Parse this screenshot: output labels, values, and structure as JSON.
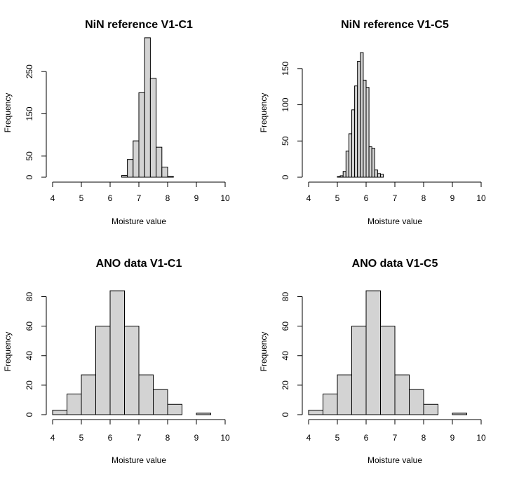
{
  "chart_data": [
    {
      "type": "bar",
      "title": "NiN reference V1-C1",
      "xlabel": "Moisture value",
      "ylabel": "Frequency",
      "xlim": [
        4,
        10
      ],
      "ylim": [
        0,
        300
      ],
      "xticks": [
        4,
        5,
        6,
        7,
        8,
        9,
        10
      ],
      "yticks": [
        0,
        50,
        150,
        250
      ],
      "bin_width": 0.2,
      "bins": [
        6.4,
        6.6,
        6.8,
        7.0,
        7.2,
        7.4,
        7.6,
        7.8,
        8.0
      ],
      "values": [
        4,
        42,
        86,
        200,
        330,
        234,
        71,
        24,
        2
      ]
    },
    {
      "type": "bar",
      "title": "NiN reference V1-C5",
      "xlabel": "Moisture value",
      "ylabel": "Frequency",
      "xlim": [
        4,
        10
      ],
      "ylim": [
        0,
        175
      ],
      "xticks": [
        4,
        5,
        6,
        7,
        8,
        9,
        10
      ],
      "yticks": [
        0,
        50,
        100,
        150
      ],
      "bin_width": 0.1,
      "bins": [
        5.0,
        5.1,
        5.2,
        5.3,
        5.4,
        5.5,
        5.6,
        5.7,
        5.8,
        5.9,
        6.0,
        6.1,
        6.2,
        6.3,
        6.4,
        6.5
      ],
      "values": [
        1,
        2,
        8,
        36,
        60,
        93,
        126,
        160,
        172,
        134,
        124,
        42,
        40,
        10,
        5,
        4
      ]
    },
    {
      "type": "bar",
      "title": "ANO data V1-C1",
      "xlabel": "Moisture value",
      "ylabel": "Frequency",
      "xlim": [
        4,
        10
      ],
      "ylim": [
        0,
        85
      ],
      "xticks": [
        4,
        5,
        6,
        7,
        8,
        9,
        10
      ],
      "yticks": [
        0,
        20,
        40,
        60,
        80
      ],
      "bin_width": 0.5,
      "bins": [
        4.0,
        4.5,
        5.0,
        5.5,
        6.0,
        6.5,
        7.0,
        7.5,
        8.0,
        8.5,
        9.0
      ],
      "values": [
        3,
        14,
        27,
        60,
        84,
        60,
        27,
        17,
        7,
        0,
        1
      ]
    },
    {
      "type": "bar",
      "title": "ANO data V1-C5",
      "xlabel": "Moisture value",
      "ylabel": "Frequency",
      "xlim": [
        4,
        10
      ],
      "ylim": [
        0,
        85
      ],
      "xticks": [
        4,
        5,
        6,
        7,
        8,
        9,
        10
      ],
      "yticks": [
        0,
        20,
        40,
        60,
        80
      ],
      "bin_width": 0.5,
      "bins": [
        4.0,
        4.5,
        5.0,
        5.5,
        6.0,
        6.5,
        7.0,
        7.5,
        8.0,
        8.5,
        9.0
      ],
      "values": [
        3,
        14,
        27,
        60,
        84,
        60,
        27,
        17,
        7,
        0,
        1
      ]
    }
  ]
}
